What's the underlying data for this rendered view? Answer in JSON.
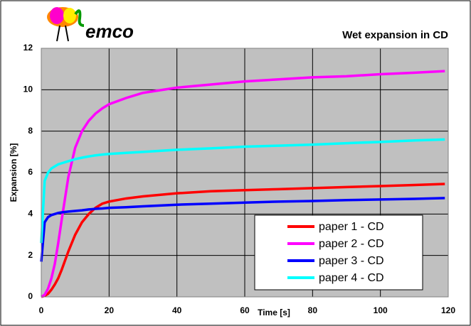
{
  "logo_text": "emco",
  "chart_data": {
    "type": "line",
    "title": "Wet expansion in CD",
    "x_label": "Time [s]",
    "y_label": "Expansion [%]",
    "x": [
      0,
      1,
      2,
      3,
      4,
      5,
      6,
      8,
      10,
      12,
      14,
      16,
      18,
      20,
      25,
      30,
      40,
      50,
      60,
      70,
      80,
      90,
      100,
      110,
      119
    ],
    "series": [
      {
        "name": "paper 1 - CD",
        "color": "#ff0000",
        "values": [
          0,
          0.05,
          0.15,
          0.35,
          0.6,
          0.9,
          1.3,
          2.2,
          3.0,
          3.6,
          4.0,
          4.3,
          4.5,
          4.6,
          4.75,
          4.85,
          5.0,
          5.1,
          5.15,
          5.2,
          5.25,
          5.3,
          5.35,
          5.4,
          5.45
        ]
      },
      {
        "name": "paper 2 - CD",
        "color": "#ff00ff",
        "values": [
          0,
          0.1,
          0.4,
          0.9,
          1.6,
          2.6,
          3.7,
          5.8,
          7.2,
          8.0,
          8.5,
          8.85,
          9.1,
          9.3,
          9.6,
          9.85,
          10.1,
          10.25,
          10.4,
          10.5,
          10.6,
          10.65,
          10.75,
          10.82,
          10.9
        ]
      },
      {
        "name": "paper 3 - CD",
        "color": "#0000ff",
        "values": [
          1.7,
          3.6,
          3.85,
          3.95,
          4.0,
          4.05,
          4.08,
          4.12,
          4.15,
          4.18,
          4.22,
          4.25,
          4.27,
          4.3,
          4.33,
          4.37,
          4.45,
          4.5,
          4.55,
          4.6,
          4.63,
          4.67,
          4.7,
          4.73,
          4.77
        ]
      },
      {
        "name": "paper 4 - CD",
        "color": "#00ffff",
        "values": [
          2.6,
          5.6,
          6.0,
          6.2,
          6.3,
          6.4,
          6.45,
          6.55,
          6.65,
          6.72,
          6.78,
          6.83,
          6.87,
          6.9,
          6.95,
          7.0,
          7.1,
          7.17,
          7.25,
          7.3,
          7.35,
          7.42,
          7.48,
          7.55,
          7.6
        ]
      }
    ],
    "xlim": [
      0,
      120
    ],
    "xticks": [
      0,
      20,
      40,
      60,
      80,
      100,
      120
    ],
    "ylim": [
      0,
      12
    ],
    "yticks": [
      0,
      2,
      4,
      6,
      8,
      10,
      12
    ],
    "grid": true,
    "legend": "lower right"
  }
}
